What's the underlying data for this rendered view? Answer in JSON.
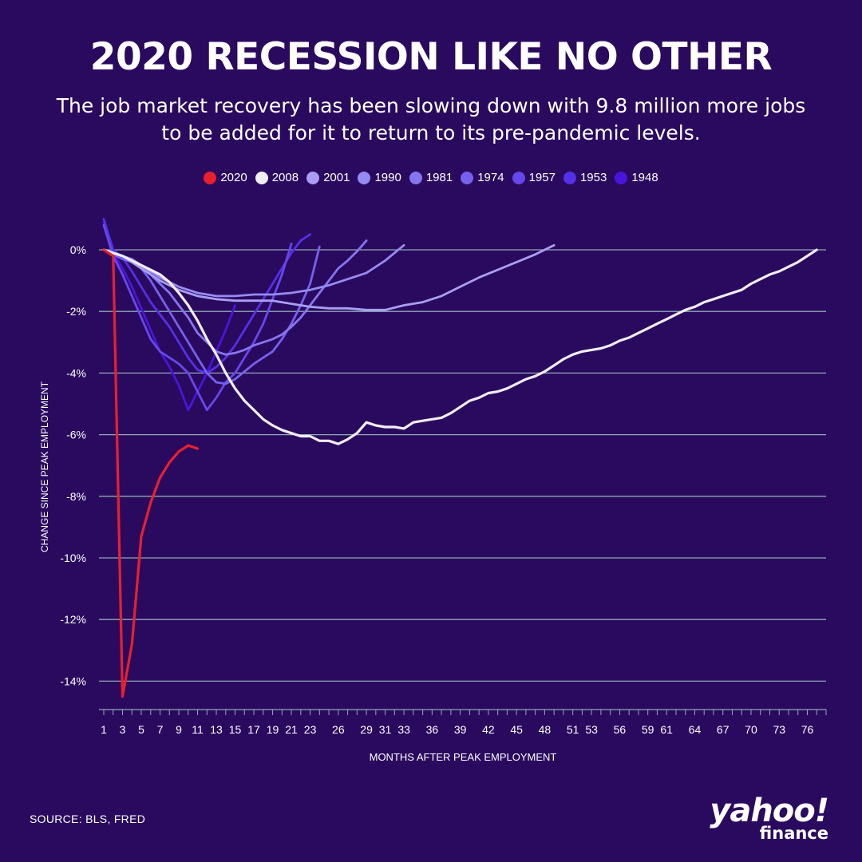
{
  "title": "2020 RECESSION LIKE NO OTHER",
  "subtitle": "The job market recovery has been slowing down with 9.8 million more jobs to be added for it to return to its pre-pandemic levels.",
  "source": "SOURCE: BLS, FRED",
  "logo": {
    "main": "yahoo!",
    "sub": "finance"
  },
  "colors": {
    "background": "#2a0a5e",
    "grid": "#8fa8b8"
  },
  "chart_data": {
    "type": "line",
    "xlabel": "MONTHS AFTER PEAK EMPLOYMENT",
    "ylabel": "CHANGE SINCE PEAK EMPLOYMENT",
    "xlim": [
      1,
      78
    ],
    "ylim": [
      -15,
      1
    ],
    "yticks": [
      0,
      -2,
      -4,
      -6,
      -8,
      -10,
      -12,
      -14
    ],
    "ytick_labels": [
      "0%",
      "-2%",
      "-4%",
      "-6%",
      "-8%",
      "-10%",
      "-12%",
      "-14%"
    ],
    "xticks": [
      1,
      3,
      5,
      7,
      9,
      11,
      13,
      15,
      17,
      19,
      21,
      23,
      26,
      29,
      31,
      33,
      36,
      39,
      42,
      45,
      48,
      51,
      53,
      56,
      59,
      61,
      64,
      67,
      70,
      73,
      76
    ],
    "xtick_labels": [
      "1",
      "3",
      "5",
      "7",
      "9",
      "11",
      "13",
      "15",
      "17",
      "19",
      "21",
      "23",
      "26",
      "29",
      "31",
      "33",
      "36",
      "39",
      "42",
      "45",
      "48",
      "51",
      "53",
      "56",
      "59",
      "61",
      "64",
      "67",
      "70",
      "73",
      "76"
    ],
    "grid": "horizontal",
    "legend_position": "top-center",
    "series": [
      {
        "name": "2020",
        "color": "#e8202e",
        "x": [
          1,
          2,
          3,
          4,
          5,
          6,
          7,
          8,
          9,
          10,
          11
        ],
        "y": [
          0.0,
          -0.2,
          -14.5,
          -12.8,
          -9.3,
          -8.2,
          -7.4,
          -6.9,
          -6.55,
          -6.35,
          -6.45
        ]
      },
      {
        "name": "2008",
        "color": "#f0eef5",
        "x": [
          1,
          2,
          3,
          4,
          5,
          6,
          7,
          8,
          9,
          10,
          11,
          12,
          13,
          14,
          15,
          16,
          17,
          18,
          19,
          20,
          21,
          22,
          23,
          24,
          25,
          26,
          27,
          28,
          29,
          30,
          31,
          32,
          33,
          34,
          35,
          36,
          37,
          38,
          39,
          40,
          41,
          42,
          43,
          44,
          45,
          46,
          47,
          48,
          49,
          50,
          51,
          52,
          53,
          54,
          55,
          56,
          57,
          58,
          59,
          60,
          61,
          62,
          63,
          64,
          65,
          66,
          67,
          68,
          69,
          70,
          71,
          72,
          73,
          74,
          75,
          76,
          77
        ],
        "y": [
          0.0,
          -0.1,
          -0.2,
          -0.35,
          -0.5,
          -0.65,
          -0.8,
          -1.05,
          -1.4,
          -1.8,
          -2.3,
          -2.9,
          -3.4,
          -4.0,
          -4.5,
          -4.9,
          -5.2,
          -5.5,
          -5.7,
          -5.85,
          -5.95,
          -6.05,
          -6.05,
          -6.2,
          -6.2,
          -6.3,
          -6.15,
          -5.95,
          -5.6,
          -5.7,
          -5.75,
          -5.75,
          -5.8,
          -5.6,
          -5.55,
          -5.5,
          -5.45,
          -5.3,
          -5.1,
          -4.9,
          -4.8,
          -4.65,
          -4.6,
          -4.5,
          -4.35,
          -4.2,
          -4.1,
          -3.95,
          -3.75,
          -3.55,
          -3.4,
          -3.3,
          -3.25,
          -3.2,
          -3.1,
          -2.95,
          -2.85,
          -2.7,
          -2.55,
          -2.4,
          -2.25,
          -2.1,
          -1.95,
          -1.85,
          -1.7,
          -1.6,
          -1.5,
          -1.4,
          -1.3,
          -1.1,
          -0.95,
          -0.8,
          -0.7,
          -0.55,
          -0.4,
          -0.2,
          0.0
        ]
      },
      {
        "name": "2001",
        "color": "#a89ff4",
        "x": [
          1,
          3,
          5,
          7,
          9,
          11,
          13,
          15,
          17,
          19,
          21,
          23,
          25,
          27,
          29,
          31,
          33,
          35,
          37,
          39,
          41,
          43,
          45,
          47,
          49
        ],
        "y": [
          0.0,
          -0.2,
          -0.6,
          -1.0,
          -1.3,
          -1.5,
          -1.6,
          -1.65,
          -1.65,
          -1.65,
          -1.75,
          -1.85,
          -1.9,
          -1.9,
          -1.95,
          -1.95,
          -1.8,
          -1.7,
          -1.5,
          -1.2,
          -0.9,
          -0.65,
          -0.4,
          -0.15,
          0.15
        ]
      },
      {
        "name": "1990",
        "color": "#968bf2",
        "x": [
          1,
          3,
          5,
          7,
          9,
          11,
          13,
          15,
          17,
          19,
          21,
          23,
          25,
          27,
          29,
          31,
          33
        ],
        "y": [
          0.0,
          -0.2,
          -0.5,
          -0.9,
          -1.2,
          -1.4,
          -1.5,
          -1.5,
          -1.45,
          -1.45,
          -1.4,
          -1.3,
          -1.15,
          -0.95,
          -0.75,
          -0.35,
          0.15
        ]
      },
      {
        "name": "1981",
        "color": "#8576f0",
        "x": [
          1,
          2,
          3,
          4,
          5,
          6,
          7,
          8,
          9,
          10,
          11,
          12,
          13,
          14,
          15,
          16,
          17,
          18,
          19,
          20,
          21,
          22,
          23,
          24,
          25,
          26,
          27,
          28,
          29
        ],
        "y": [
          0.0,
          -0.1,
          -0.2,
          -0.3,
          -0.5,
          -0.8,
          -1.1,
          -1.4,
          -1.8,
          -2.2,
          -2.7,
          -3.0,
          -3.3,
          -3.4,
          -3.35,
          -3.25,
          -3.1,
          -3.0,
          -2.9,
          -2.75,
          -2.5,
          -2.2,
          -1.8,
          -1.4,
          -1.0,
          -0.6,
          -0.35,
          -0.05,
          0.3
        ]
      },
      {
        "name": "1974",
        "color": "#7561ee",
        "x": [
          1,
          2,
          3,
          4,
          5,
          6,
          7,
          8,
          9,
          10,
          11,
          12,
          13,
          14,
          15,
          16,
          17,
          18,
          19,
          20,
          21,
          22,
          23,
          24
        ],
        "y": [
          0.0,
          -0.15,
          -0.3,
          -0.4,
          -0.6,
          -1.0,
          -1.5,
          -2.0,
          -2.5,
          -3.0,
          -3.5,
          -4.0,
          -4.3,
          -4.35,
          -4.2,
          -3.95,
          -3.7,
          -3.5,
          -3.3,
          -2.9,
          -2.4,
          -1.8,
          -1.1,
          0.1
        ]
      },
      {
        "name": "1957",
        "color": "#6548ec",
        "x": [
          1,
          2,
          3,
          4,
          5,
          6,
          7,
          8,
          9,
          10,
          11,
          12,
          13,
          14,
          15,
          16,
          17,
          18,
          19,
          20,
          21
        ],
        "y": [
          0.8,
          -0.2,
          -0.8,
          -1.5,
          -2.2,
          -2.9,
          -3.3,
          -3.5,
          -3.7,
          -4.0,
          -4.6,
          -5.2,
          -4.8,
          -4.3,
          -4.0,
          -3.5,
          -3.0,
          -2.4,
          -1.6,
          -0.8,
          0.2
        ]
      },
      {
        "name": "1953",
        "color": "#5430e8",
        "x": [
          1,
          2,
          3,
          4,
          5,
          6,
          7,
          8,
          9,
          10,
          11,
          12,
          13,
          14,
          15,
          16,
          17,
          18,
          19,
          20,
          21,
          22,
          23
        ],
        "y": [
          1.0,
          0.0,
          -0.25,
          -0.7,
          -1.2,
          -1.7,
          -2.1,
          -2.5,
          -3.0,
          -3.5,
          -3.9,
          -4.0,
          -3.8,
          -3.5,
          -3.1,
          -2.6,
          -2.1,
          -1.6,
          -1.1,
          -0.6,
          -0.1,
          0.3,
          0.5
        ]
      },
      {
        "name": "1948",
        "color": "#4b14dc",
        "x": [
          1,
          2,
          3,
          4,
          5,
          6,
          7,
          8,
          9,
          10,
          11,
          12,
          13,
          14,
          15
        ],
        "y": [
          0.9,
          -0.1,
          -0.6,
          -1.2,
          -1.9,
          -2.6,
          -3.3,
          -3.8,
          -4.4,
          -5.2,
          -4.6,
          -4.0,
          -3.3,
          -2.6,
          -1.8
        ]
      }
    ]
  }
}
